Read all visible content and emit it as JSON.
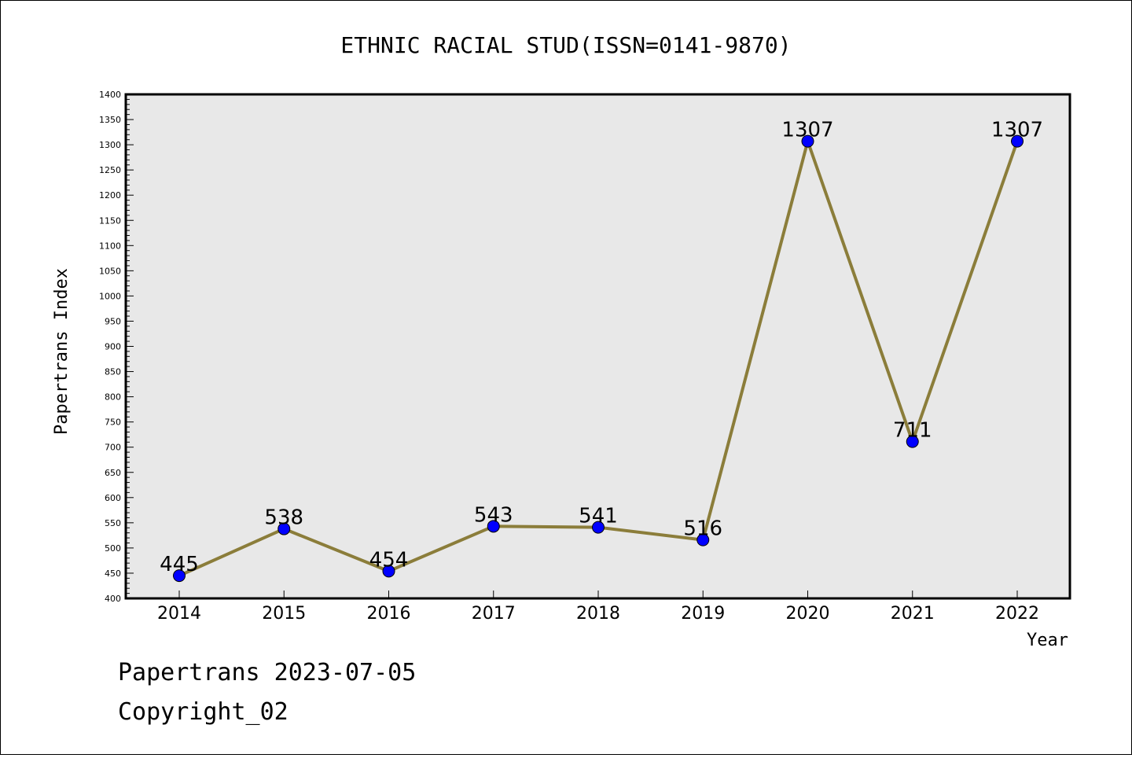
{
  "chart_data": {
    "type": "line",
    "title": "ETHNIC RACIAL STUD(ISSN=0141-9870)",
    "xlabel": "Year",
    "ylabel": "Papertrans Index",
    "categories": [
      "2014",
      "2015",
      "2016",
      "2017",
      "2018",
      "2019",
      "2020",
      "2021",
      "2022"
    ],
    "series": [
      {
        "values": [
          445,
          538,
          454,
          543,
          541,
          516,
          1307,
          711,
          1307
        ]
      }
    ],
    "data_labels": [
      "445",
      "538",
      "454",
      "543",
      "541",
      "516",
      "1307",
      "711",
      "1307"
    ],
    "ylim": [
      400,
      1400
    ],
    "y_ticks": [
      "400",
      "450",
      "500",
      "550",
      "600",
      "650",
      "700",
      "750",
      "800",
      "850",
      "900",
      "950",
      "1000",
      "1050",
      "1100",
      "1150",
      "1200",
      "1250",
      "1300",
      "1350",
      "1400"
    ],
    "grid": false,
    "legend": "none",
    "colors": {
      "line": "#8b7d3a",
      "marker": "#0000ff",
      "plot_background": "#e8e8e8"
    }
  },
  "footer": {
    "line1": "Papertrans 2023-07-05",
    "line2": "Copyright_02"
  }
}
